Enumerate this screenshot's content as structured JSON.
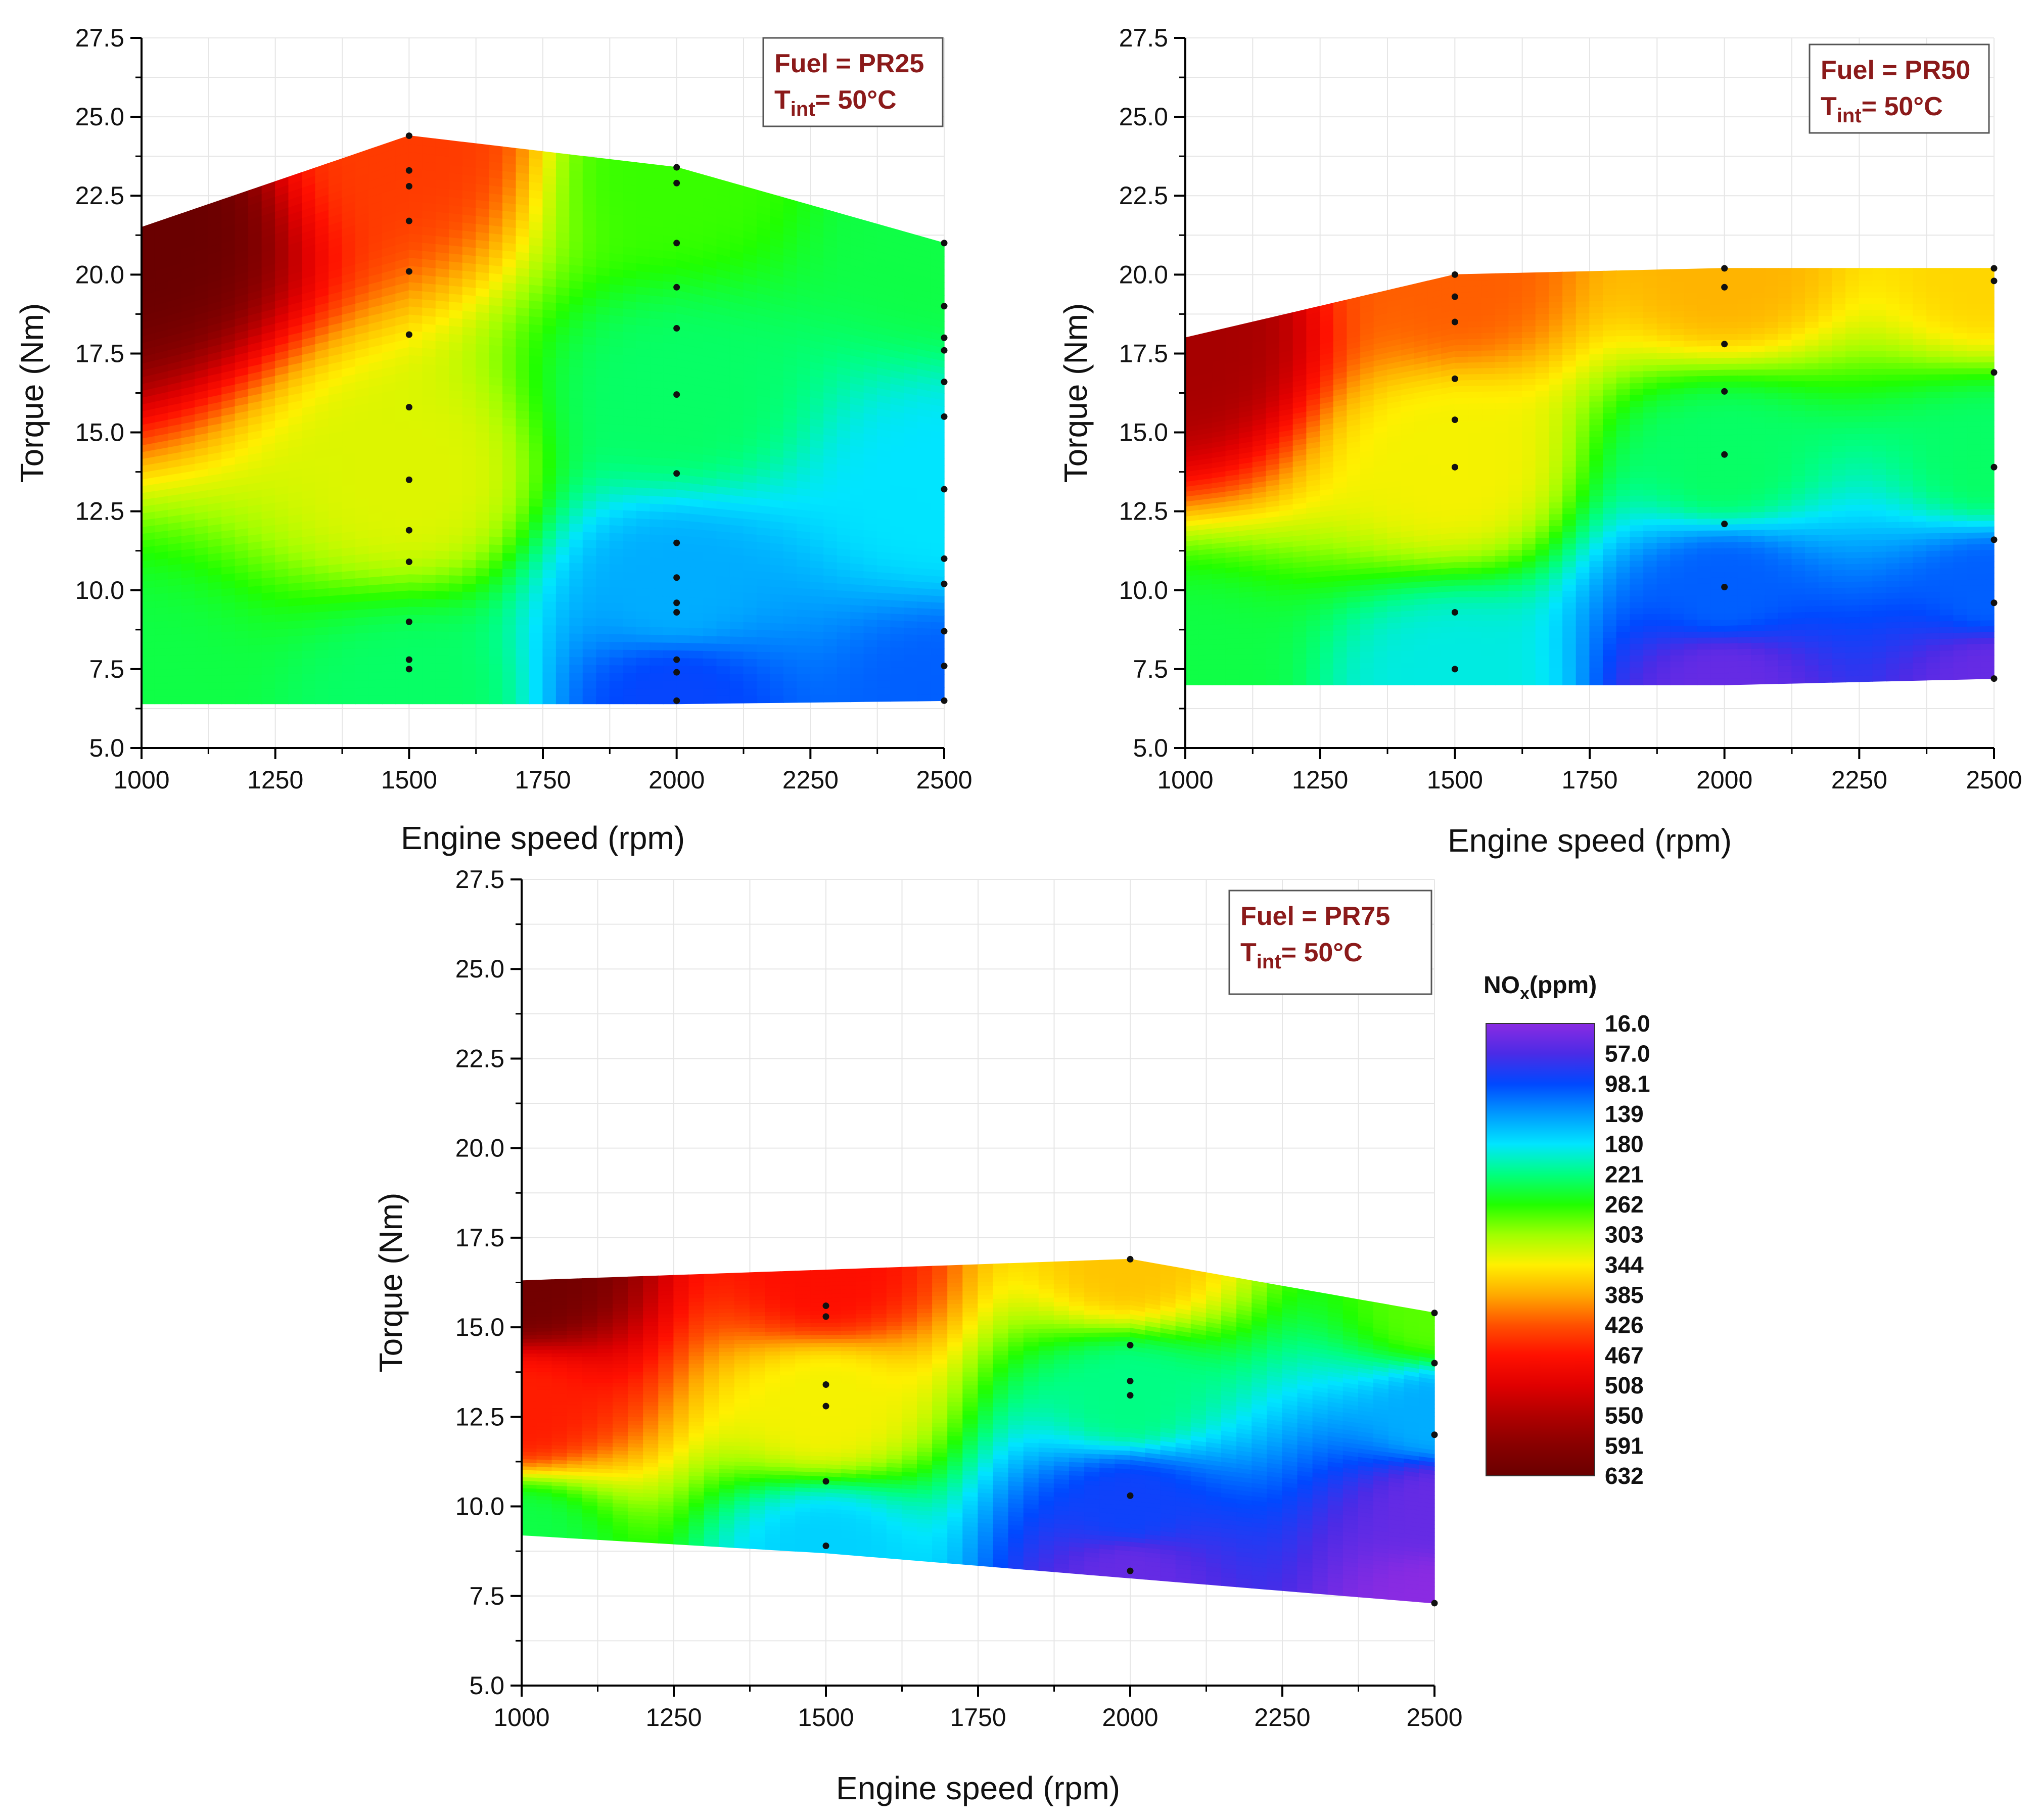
{
  "chart_data": [
    {
      "type": "contour",
      "annotation": {
        "fuel_label": "Fuel = PR25",
        "temp_prefix": "T",
        "temp_sub": "int",
        "temp_value": "= 50°C"
      },
      "xlabel": "Engine speed (rpm)",
      "ylabel": "Torque (Nm)",
      "xlim": [
        1000,
        2500
      ],
      "ylim": [
        5.0,
        27.5
      ],
      "xticks": [
        "1000",
        "1250",
        "1500",
        "1750",
        "2000",
        "2250",
        "2500"
      ],
      "yticks": [
        "5.0",
        "7.5",
        "10.0",
        "12.5",
        "15.0",
        "17.5",
        "20.0",
        "22.5",
        "25.0",
        "27.5"
      ],
      "boundary": {
        "top": [
          [
            1000,
            21.5
          ],
          [
            1500,
            24.4
          ],
          [
            2000,
            23.4
          ],
          [
            2500,
            21.0
          ]
        ],
        "bottom": [
          [
            1000,
            6.4
          ],
          [
            2000,
            6.4
          ],
          [
            2500,
            6.5
          ]
        ]
      },
      "points": [
        {
          "speed": 1500,
          "torque": [
            24.4,
            23.3,
            22.8,
            21.7,
            20.1,
            18.1,
            15.8,
            13.5,
            11.9,
            10.9,
            9.0,
            7.8,
            7.5
          ]
        },
        {
          "speed": 2000,
          "torque": [
            23.4,
            22.9,
            21.0,
            19.6,
            18.3,
            16.2,
            13.7,
            11.5,
            10.4,
            9.6,
            9.3,
            7.8,
            7.4,
            6.5
          ]
        },
        {
          "speed": 2500,
          "torque": [
            21.0,
            19.0,
            18.0,
            17.6,
            16.6,
            15.5,
            13.2,
            11.0,
            10.2,
            8.7,
            7.6,
            6.5
          ]
        }
      ],
      "nox_anchors": [
        [
          1000,
          21.5,
          632
        ],
        [
          1000,
          6.4,
          240
        ],
        [
          1500,
          24.4,
          440
        ],
        [
          1500,
          13.5,
          330
        ],
        [
          1500,
          6.5,
          230
        ],
        [
          2000,
          23.4,
          270
        ],
        [
          2000,
          16.0,
          230
        ],
        [
          2000,
          10.0,
          150
        ],
        [
          2000,
          6.5,
          95
        ],
        [
          2500,
          21.0,
          240
        ],
        [
          2500,
          13.0,
          180
        ],
        [
          2500,
          6.5,
          110
        ]
      ]
    },
    {
      "type": "contour",
      "annotation": {
        "fuel_label": "Fuel = PR50",
        "temp_prefix": "T",
        "temp_sub": "int",
        "temp_value": "= 50°C"
      },
      "xlabel": "Engine speed (rpm)",
      "ylabel": "Torque (Nm)",
      "xlim": [
        1000,
        2500
      ],
      "ylim": [
        5.0,
        27.5
      ],
      "xticks": [
        "1000",
        "1250",
        "1500",
        "1750",
        "2000",
        "2250",
        "2500"
      ],
      "yticks": [
        "5.0",
        "7.5",
        "10.0",
        "12.5",
        "15.0",
        "17.5",
        "20.0",
        "22.5",
        "25.0",
        "27.5"
      ],
      "boundary": {
        "top": [
          [
            1000,
            18.0
          ],
          [
            1500,
            20.0
          ],
          [
            2000,
            20.2
          ],
          [
            2500,
            20.2
          ]
        ],
        "bottom": [
          [
            1000,
            7.0
          ],
          [
            2000,
            7.0
          ],
          [
            2500,
            7.2
          ]
        ]
      },
      "points": [
        {
          "speed": 1500,
          "torque": [
            20.0,
            19.3,
            18.5,
            16.7,
            15.4,
            13.9,
            9.3,
            7.5
          ]
        },
        {
          "speed": 2000,
          "torque": [
            20.2,
            19.6,
            17.8,
            16.3,
            14.3,
            12.1,
            10.1
          ]
        },
        {
          "speed": 2500,
          "torque": [
            20.2,
            19.8,
            16.9,
            13.9,
            11.6,
            9.6,
            7.2
          ]
        }
      ],
      "nox_anchors": [
        [
          1000,
          18.0,
          560
        ],
        [
          1000,
          7.0,
          240
        ],
        [
          1500,
          20.0,
          420
        ],
        [
          1500,
          14.0,
          340
        ],
        [
          1500,
          7.0,
          190
        ],
        [
          2000,
          20.2,
          380
        ],
        [
          2000,
          14.0,
          230
        ],
        [
          2000,
          10.0,
          110
        ],
        [
          2000,
          7.0,
          40
        ],
        [
          2500,
          20.2,
          360
        ],
        [
          2500,
          14.0,
          230
        ],
        [
          2500,
          10.0,
          110
        ],
        [
          2500,
          7.2,
          40
        ]
      ]
    },
    {
      "type": "contour",
      "annotation": {
        "fuel_label": "Fuel = PR75",
        "temp_prefix": "T",
        "temp_sub": "int",
        "temp_value": "= 50°C"
      },
      "xlabel": "Engine speed (rpm)",
      "ylabel": "Torque (Nm)",
      "xlim": [
        1000,
        2500
      ],
      "ylim": [
        5.0,
        27.5
      ],
      "xticks": [
        "1000",
        "1250",
        "1500",
        "1750",
        "2000",
        "2250",
        "2500"
      ],
      "yticks": [
        "5.0",
        "7.5",
        "10.0",
        "12.5",
        "15.0",
        "17.5",
        "20.0",
        "22.5",
        "25.0",
        "27.5"
      ],
      "boundary": {
        "top": [
          [
            1000,
            16.3
          ],
          [
            2000,
            16.9
          ],
          [
            2500,
            15.4
          ]
        ],
        "bottom": [
          [
            1000,
            9.2
          ],
          [
            1500,
            8.7
          ],
          [
            2000,
            8.0
          ],
          [
            2500,
            7.3
          ]
        ]
      },
      "points": [
        {
          "speed": 1500,
          "torque": [
            15.6,
            15.3,
            13.4,
            12.8,
            10.7,
            8.9
          ]
        },
        {
          "speed": 2000,
          "torque": [
            16.9,
            14.5,
            13.5,
            13.1,
            10.3,
            8.2
          ]
        },
        {
          "speed": 2500,
          "torque": [
            15.4,
            14.0,
            12.0,
            7.3
          ]
        }
      ],
      "nox_anchors": [
        [
          1000,
          16.3,
          620
        ],
        [
          1000,
          12.7,
          460
        ],
        [
          1000,
          9.2,
          240
        ],
        [
          1500,
          16.5,
          470
        ],
        [
          1500,
          12.8,
          340
        ],
        [
          1500,
          8.7,
          170
        ],
        [
          2000,
          16.9,
          370
        ],
        [
          2000,
          13.0,
          220
        ],
        [
          2000,
          10.0,
          90
        ],
        [
          2000,
          8.0,
          40
        ],
        [
          2500,
          15.4,
          280
        ],
        [
          2500,
          12.5,
          150
        ],
        [
          2500,
          10.0,
          40
        ],
        [
          2500,
          7.3,
          16
        ]
      ]
    }
  ],
  "colorbar": {
    "title_prefix": "NO",
    "title_sub": "x",
    "title_suffix": "(ppm)",
    "labels": [
      "16.0",
      "57.0",
      "98.1",
      "139",
      "180",
      "221",
      "262",
      "303",
      "344",
      "385",
      "426",
      "467",
      "508",
      "550",
      "591",
      "632"
    ],
    "min": 16.0,
    "max": 632,
    "colors": [
      "#8a2be2",
      "#4b2be6",
      "#0048ff",
      "#0099ff",
      "#00e5ff",
      "#00ff80",
      "#20ff00",
      "#a0ff00",
      "#fff000",
      "#ffaa00",
      "#ff5000",
      "#ff1000",
      "#e00000",
      "#b00000",
      "#880000",
      "#6a0000"
    ]
  }
}
